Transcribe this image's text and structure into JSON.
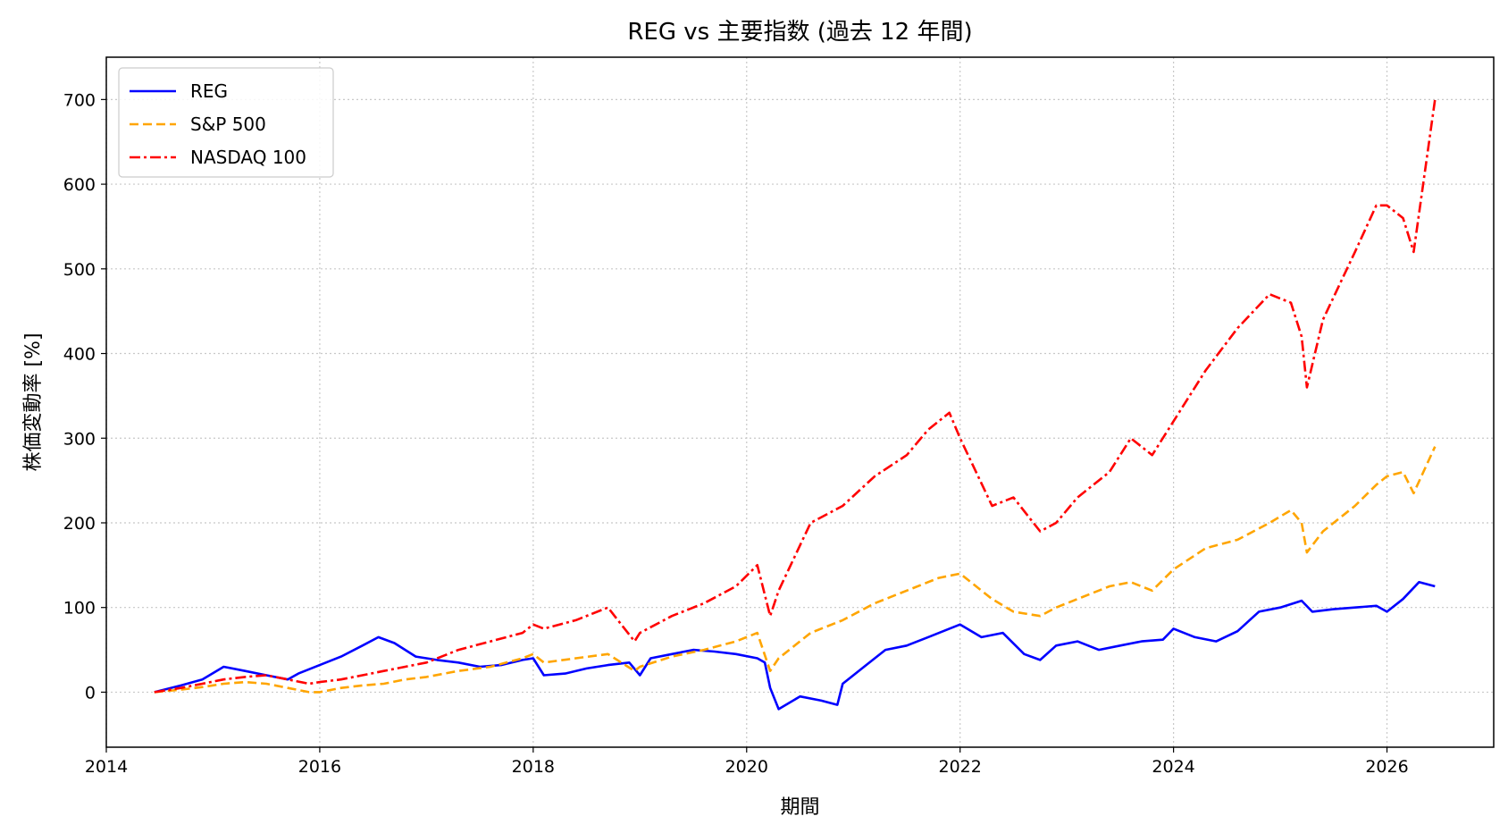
{
  "chart_data": {
    "type": "line",
    "title": "REG vs 主要指数 (過去 12 年間)",
    "xlabel": "期間",
    "ylabel": "株価変動率 [%]",
    "xlim": [
      2014.0,
      2027.0
    ],
    "ylim": [
      -65,
      750
    ],
    "xticks": [
      2014,
      2016,
      2018,
      2020,
      2022,
      2024,
      2026
    ],
    "yticks": [
      0,
      100,
      200,
      300,
      400,
      500,
      600,
      700
    ],
    "grid": true,
    "legend_position": "top-left",
    "series": [
      {
        "name": "REG",
        "color": "#0000ff",
        "style": "solid",
        "x": [
          2014.45,
          2014.7,
          2014.9,
          2015.1,
          2015.3,
          2015.5,
          2015.7,
          2015.8,
          2016.0,
          2016.2,
          2016.4,
          2016.55,
          2016.7,
          2016.9,
          2017.1,
          2017.3,
          2017.5,
          2017.7,
          2017.9,
          2018.0,
          2018.1,
          2018.3,
          2018.5,
          2018.7,
          2018.9,
          2019.0,
          2019.1,
          2019.3,
          2019.5,
          2019.7,
          2019.9,
          2020.1,
          2020.17,
          2020.22,
          2020.3,
          2020.5,
          2020.7,
          2020.85,
          2020.9,
          2021.1,
          2021.3,
          2021.5,
          2021.7,
          2021.9,
          2022.0,
          2022.2,
          2022.4,
          2022.6,
          2022.75,
          2022.9,
          2023.1,
          2023.3,
          2023.5,
          2023.7,
          2023.9,
          2024.0,
          2024.2,
          2024.4,
          2024.6,
          2024.8,
          2025.0,
          2025.2,
          2025.3,
          2025.5,
          2025.7,
          2025.9,
          2026.0,
          2026.15,
          2026.3,
          2026.45
        ],
        "y": [
          0,
          8,
          15,
          30,
          25,
          20,
          15,
          22,
          32,
          42,
          55,
          65,
          58,
          42,
          38,
          35,
          30,
          32,
          38,
          40,
          20,
          22,
          28,
          32,
          35,
          20,
          40,
          45,
          50,
          48,
          45,
          40,
          35,
          5,
          -20,
          -5,
          -10,
          -15,
          10,
          30,
          50,
          55,
          65,
          75,
          80,
          65,
          70,
          45,
          38,
          55,
          60,
          50,
          55,
          60,
          62,
          75,
          65,
          60,
          72,
          95,
          100,
          108,
          95,
          98,
          100,
          102,
          95,
          110,
          130,
          125
        ]
      },
      {
        "name": "S&P 500",
        "color": "#ffa500",
        "style": "dashed",
        "x": [
          2014.45,
          2014.7,
          2014.9,
          2015.1,
          2015.3,
          2015.5,
          2015.7,
          2015.9,
          2016.0,
          2016.2,
          2016.4,
          2016.6,
          2016.8,
          2017.0,
          2017.3,
          2017.6,
          2017.9,
          2018.0,
          2018.1,
          2018.4,
          2018.7,
          2018.95,
          2019.0,
          2019.3,
          2019.6,
          2019.9,
          2020.1,
          2020.22,
          2020.3,
          2020.6,
          2020.9,
          2021.2,
          2021.5,
          2021.8,
          2022.0,
          2022.3,
          2022.5,
          2022.75,
          2022.9,
          2023.1,
          2023.4,
          2023.6,
          2023.8,
          2024.0,
          2024.3,
          2024.6,
          2024.9,
          2025.1,
          2025.2,
          2025.25,
          2025.4,
          2025.7,
          2025.9,
          2026.0,
          2026.15,
          2026.25,
          2026.45
        ],
        "y": [
          0,
          3,
          6,
          10,
          12,
          10,
          5,
          0,
          0,
          5,
          8,
          10,
          15,
          18,
          25,
          30,
          40,
          45,
          35,
          40,
          45,
          25,
          30,
          42,
          50,
          60,
          70,
          25,
          40,
          70,
          85,
          105,
          120,
          135,
          140,
          110,
          95,
          90,
          100,
          110,
          125,
          130,
          120,
          145,
          170,
          180,
          200,
          215,
          200,
          165,
          190,
          220,
          245,
          255,
          260,
          235,
          290
        ]
      },
      {
        "name": "NASDAQ 100",
        "color": "#ff0000",
        "style": "dashdot",
        "x": [
          2014.45,
          2014.7,
          2014.9,
          2015.1,
          2015.3,
          2015.5,
          2015.7,
          2015.9,
          2016.0,
          2016.2,
          2016.4,
          2016.6,
          2016.8,
          2017.0,
          2017.3,
          2017.6,
          2017.9,
          2018.0,
          2018.1,
          2018.4,
          2018.7,
          2018.95,
          2019.0,
          2019.3,
          2019.6,
          2019.9,
          2020.1,
          2020.22,
          2020.3,
          2020.6,
          2020.9,
          2021.2,
          2021.5,
          2021.7,
          2021.9,
          2022.0,
          2022.3,
          2022.5,
          2022.75,
          2022.9,
          2023.1,
          2023.4,
          2023.6,
          2023.8,
          2024.0,
          2024.3,
          2024.6,
          2024.9,
          2025.1,
          2025.2,
          2025.25,
          2025.4,
          2025.7,
          2025.9,
          2026.0,
          2026.15,
          2026.25,
          2026.45
        ],
        "y": [
          0,
          5,
          10,
          15,
          18,
          20,
          15,
          10,
          12,
          15,
          20,
          25,
          30,
          35,
          50,
          60,
          70,
          80,
          75,
          85,
          100,
          60,
          70,
          90,
          105,
          125,
          150,
          90,
          120,
          200,
          220,
          255,
          280,
          310,
          330,
          300,
          220,
          230,
          190,
          200,
          230,
          260,
          300,
          280,
          320,
          380,
          430,
          470,
          460,
          420,
          360,
          440,
          520,
          575,
          575,
          560,
          520,
          700
        ]
      }
    ]
  }
}
